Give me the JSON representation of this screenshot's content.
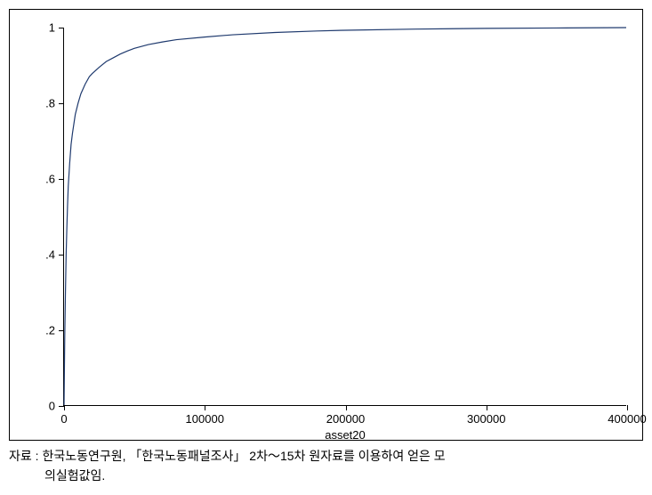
{
  "chart": {
    "type": "line",
    "background_color": "#ffffff",
    "border_color": "#000000",
    "xlabel": "asset20",
    "label_fontsize": 13,
    "tick_fontsize": 13,
    "xlim": [
      0,
      400000
    ],
    "ylim": [
      0,
      1
    ],
    "xticks": [
      0,
      100000,
      200000,
      300000,
      400000
    ],
    "xtick_labels": [
      "0",
      "100000",
      "200000",
      "300000",
      "400000"
    ],
    "yticks": [
      0,
      0.2,
      0.4,
      0.6,
      0.8,
      1
    ],
    "ytick_labels": [
      "0",
      ".2",
      ".4",
      ".6",
      ".8",
      "1"
    ],
    "line_color": "#1f3a6e",
    "line_width": 1.2,
    "series": {
      "x": [
        0,
        500,
        1000,
        1500,
        2000,
        2500,
        3000,
        4000,
        5000,
        6000,
        8000,
        10000,
        12000,
        15000,
        18000,
        20000,
        25000,
        30000,
        35000,
        40000,
        45000,
        50000,
        60000,
        70000,
        80000,
        100000,
        120000,
        150000,
        180000,
        200000,
        250000,
        300000,
        350000,
        400000
      ],
      "y": [
        0,
        0.18,
        0.3,
        0.4,
        0.47,
        0.53,
        0.58,
        0.64,
        0.69,
        0.72,
        0.77,
        0.8,
        0.825,
        0.85,
        0.87,
        0.878,
        0.895,
        0.91,
        0.92,
        0.93,
        0.938,
        0.945,
        0.955,
        0.962,
        0.968,
        0.975,
        0.981,
        0.987,
        0.991,
        0.993,
        0.996,
        0.998,
        0.999,
        1.0
      ]
    }
  },
  "caption": {
    "label": "자료 :",
    "text_line1": "한국노동연구원, 「한국노동패널조사」 2차～15차 원자료를 이용하여 얻은 모",
    "text_line2": "의실험값임."
  }
}
